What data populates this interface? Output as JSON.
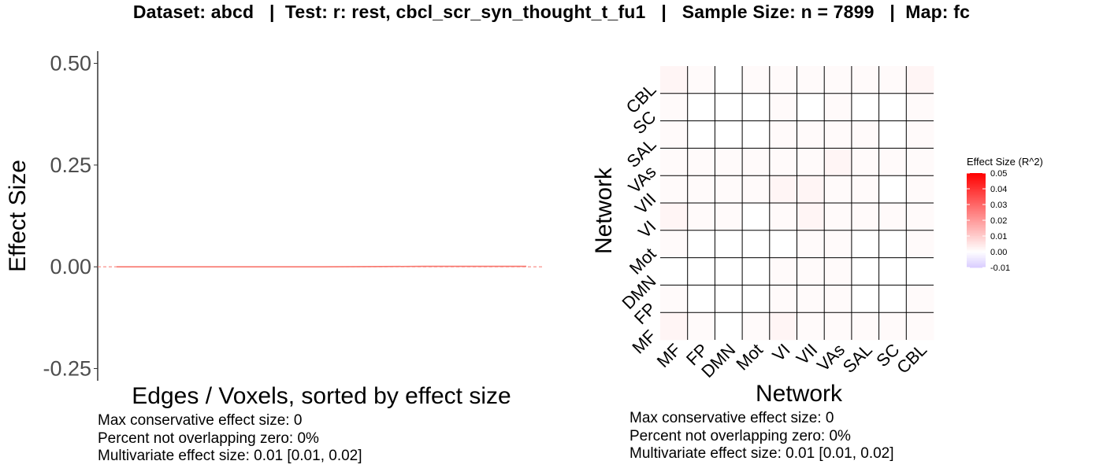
{
  "header": {
    "title": "Dataset: abcd   |  Test: r: rest, cbcl_scr_syn_thought_t_fu1   |   Sample Size: n = 7899   |  Map: fc"
  },
  "left_panel": {
    "notes": [
      "Max conservative effect size: 0",
      "Percent not overlapping zero: 0%",
      "Multivariate effect size: 0.01 [0.01, 0.02]"
    ]
  },
  "right_panel": {
    "notes": [
      "Max conservative effect size: 0",
      "Percent not overlapping zero: 0%",
      "Multivariate effect size: 0.01 [0.01, 0.02]"
    ]
  },
  "chart_data": [
    {
      "type": "line",
      "xlabel": "Edges / Voxels, sorted by effect size",
      "ylabel": "Effect Size",
      "ylim": [
        -0.28,
        0.53
      ],
      "yticks": [
        0.5,
        0.25,
        0.0,
        -0.25
      ],
      "ytick_labels": [
        "0.50",
        "0.25",
        "0.00",
        "-0.25"
      ],
      "series": [
        {
          "values": [
            0.0,
            0.0,
            0.0,
            0.001,
            0.001
          ]
        }
      ],
      "reference_line": 0,
      "colors": {
        "series": "#f8766d",
        "reference": "#f8766d"
      },
      "grid": false
    },
    {
      "type": "heatmap",
      "xlabel": "Network",
      "ylabel": "Network",
      "categories": [
        "MF",
        "FP",
        "DMN",
        "Mot",
        "VI",
        "VII",
        "VAs",
        "SAL",
        "SC",
        "CBL"
      ],
      "values": [
        [
          0.002,
          0.001,
          0.0,
          0.001,
          0.002,
          0.001,
          0.001,
          0.001,
          0.001,
          0.001
        ],
        [
          0.001,
          0.0,
          0.0,
          0.0,
          0.001,
          0.001,
          0.001,
          0.0,
          0.0,
          0.001
        ],
        [
          0.0,
          0.0,
          0.0,
          0.0,
          0.001,
          0.001,
          0.001,
          0.0,
          0.0,
          0.0
        ],
        [
          0.001,
          0.0,
          0.0,
          0.0,
          0.0,
          0.001,
          0.001,
          0.0,
          0.0,
          0.001
        ],
        [
          0.002,
          0.001,
          0.001,
          0.0,
          0.001,
          0.002,
          0.001,
          0.001,
          0.001,
          0.001
        ],
        [
          0.001,
          0.001,
          0.001,
          0.001,
          0.002,
          0.002,
          0.001,
          0.001,
          0.0,
          0.001
        ],
        [
          0.001,
          0.001,
          0.001,
          0.001,
          0.001,
          0.001,
          0.002,
          0.001,
          0.001,
          0.001
        ],
        [
          0.001,
          0.0,
          0.0,
          0.0,
          0.001,
          0.001,
          0.001,
          0.001,
          0.0,
          0.001
        ],
        [
          0.001,
          0.0,
          0.0,
          0.0,
          0.001,
          0.0,
          0.001,
          0.0,
          0.0,
          0.001
        ],
        [
          0.002,
          0.001,
          0.0,
          0.001,
          0.001,
          0.001,
          0.001,
          0.001,
          0.001,
          0.002
        ]
      ],
      "legend": {
        "title": "Effect Size (R^2)",
        "ticks": [
          "0.05",
          "0.04",
          "0.03",
          "0.02",
          "0.01",
          "0.00",
          "-0.01"
        ],
        "range": [
          -0.01,
          0.05
        ],
        "colors": {
          "low": "#d9ccff",
          "mid": "#ffffff",
          "high": "#ff0000"
        }
      },
      "grid": true
    }
  ]
}
